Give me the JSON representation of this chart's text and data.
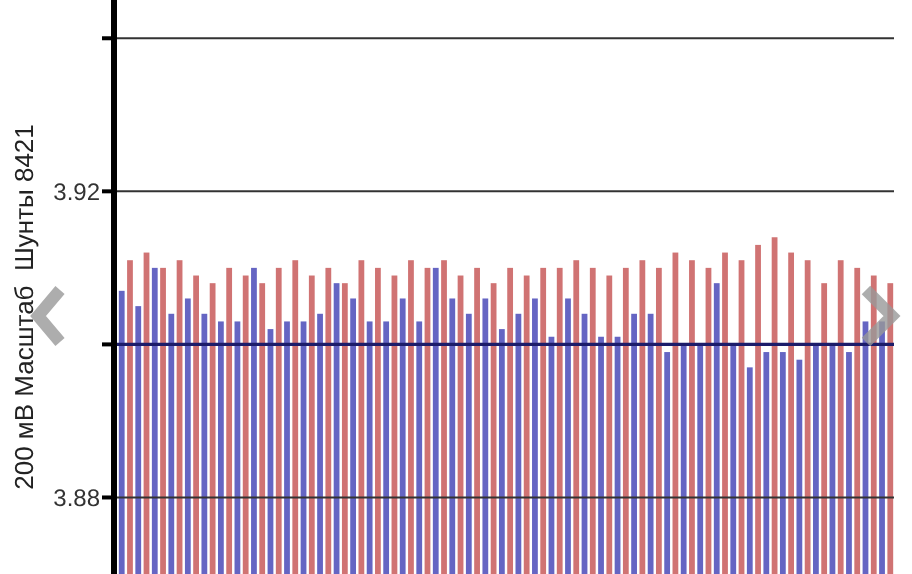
{
  "chart_data": {
    "type": "bar",
    "ylabel": "200 мВ Масштаб  Шунты 8421",
    "categories": [
      null,
      null,
      null,
      null,
      null,
      null,
      null,
      null,
      null,
      null,
      null,
      null,
      null,
      null,
      null,
      null,
      null,
      null,
      null,
      null,
      null,
      null,
      null,
      null,
      null,
      null,
      null,
      null,
      null,
      null,
      null,
      null,
      null,
      null,
      null,
      null,
      null,
      null,
      null,
      null,
      null,
      null,
      null,
      null,
      null,
      null,
      null
    ],
    "series": [
      {
        "color": "#4a4ab8",
        "values": [
          3.907,
          3.905,
          3.91,
          3.904,
          3.906,
          3.904,
          3.903,
          3.903,
          3.91,
          3.902,
          3.903,
          3.903,
          3.904,
          3.908,
          3.906,
          3.903,
          3.903,
          3.906,
          3.903,
          3.91,
          3.906,
          3.904,
          3.906,
          3.902,
          3.904,
          3.906,
          3.901,
          3.906,
          3.904,
          3.901,
          3.901,
          3.904,
          3.904,
          3.899,
          3.9,
          3.9,
          3.908,
          3.9,
          3.897,
          3.899,
          3.899,
          3.898,
          3.9,
          3.9,
          3.899,
          3.903,
          3.903
        ]
      },
      {
        "color": "#c85a5a",
        "values": [
          3.911,
          3.912,
          3.91,
          3.911,
          3.909,
          3.908,
          3.91,
          3.909,
          3.908,
          3.91,
          3.911,
          3.909,
          3.91,
          3.908,
          3.911,
          3.91,
          3.909,
          3.911,
          3.91,
          3.911,
          3.909,
          3.91,
          3.908,
          3.91,
          3.909,
          3.91,
          3.91,
          3.911,
          3.91,
          3.909,
          3.91,
          3.911,
          3.91,
          3.912,
          3.911,
          3.91,
          3.912,
          3.911,
          3.913,
          3.914,
          3.912,
          3.911,
          3.908,
          3.911,
          3.91,
          3.909,
          3.908
        ]
      }
    ],
    "ylim": [
      3.87,
      3.945
    ],
    "yticks": [
      {
        "value": 3.88,
        "label": "3.88"
      },
      {
        "value": 3.9,
        "label": null
      },
      {
        "value": 3.92,
        "label": "3.92"
      },
      {
        "value": 3.94,
        "label": null
      }
    ],
    "grid": "y",
    "ref_lines": [
      {
        "axis": "y",
        "value": 3.9,
        "color": "#1c1c6a"
      }
    ]
  }
}
